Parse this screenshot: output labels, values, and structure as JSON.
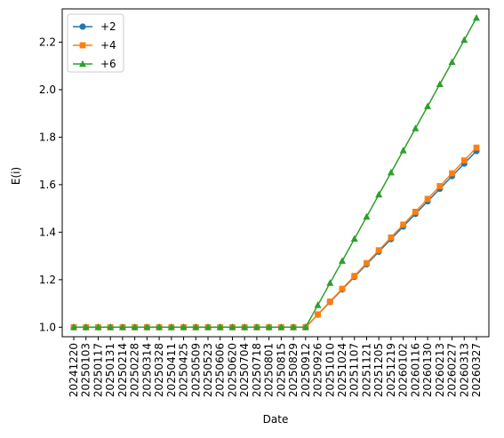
{
  "chart_data": {
    "type": "line",
    "title": "",
    "xlabel": "Date",
    "ylabel": "E(i)",
    "ylim": [
      0.96,
      2.34
    ],
    "yticks": [
      1.0,
      1.2,
      1.4,
      1.6,
      1.8,
      2.0,
      2.2
    ],
    "grid": false,
    "legend_position": "upper-left",
    "x": [
      "20241220",
      "20250103",
      "20250117",
      "20250131",
      "20250214",
      "20250228",
      "20250314",
      "20250328",
      "20250411",
      "20250425",
      "20250509",
      "20250523",
      "20250606",
      "20250620",
      "20250704",
      "20250718",
      "20250801",
      "20250815",
      "20250829",
      "20250912",
      "20250926",
      "20251010",
      "20251024",
      "20251107",
      "20251121",
      "20251205",
      "20251219",
      "20260102",
      "20260116",
      "20260130",
      "20260213",
      "20260227",
      "20260313",
      "20260327"
    ],
    "series": [
      {
        "name": "+2",
        "color": "#1f77b4",
        "marker": "circle",
        "values": [
          1,
          1,
          1,
          1,
          1,
          1,
          1,
          1,
          1,
          1,
          1,
          1,
          1,
          1,
          1,
          1,
          1,
          1,
          1,
          1,
          1.053,
          1.106,
          1.159,
          1.212,
          1.265,
          1.318,
          1.371,
          1.424,
          1.477,
          1.53,
          1.583,
          1.636,
          1.689,
          1.742
        ]
      },
      {
        "name": "+4",
        "color": "#ff7f0e",
        "marker": "square",
        "values": [
          1,
          1,
          1,
          1,
          1,
          1,
          1,
          1,
          1,
          1,
          1,
          1,
          1,
          1,
          1,
          1,
          1,
          1,
          1,
          1,
          1.054,
          1.108,
          1.162,
          1.216,
          1.27,
          1.324,
          1.378,
          1.432,
          1.486,
          1.54,
          1.594,
          1.648,
          1.702,
          1.756
        ]
      },
      {
        "name": "+6",
        "color": "#2ca02c",
        "marker": "triangle",
        "values": [
          1,
          1,
          1,
          1,
          1,
          1,
          1,
          1,
          1,
          1,
          1,
          1,
          1,
          1,
          1,
          1,
          1,
          1,
          1,
          1,
          1.093,
          1.186,
          1.279,
          1.372,
          1.465,
          1.558,
          1.651,
          1.744,
          1.837,
          1.93,
          2.023,
          2.116,
          2.209,
          2.302
        ]
      }
    ]
  }
}
